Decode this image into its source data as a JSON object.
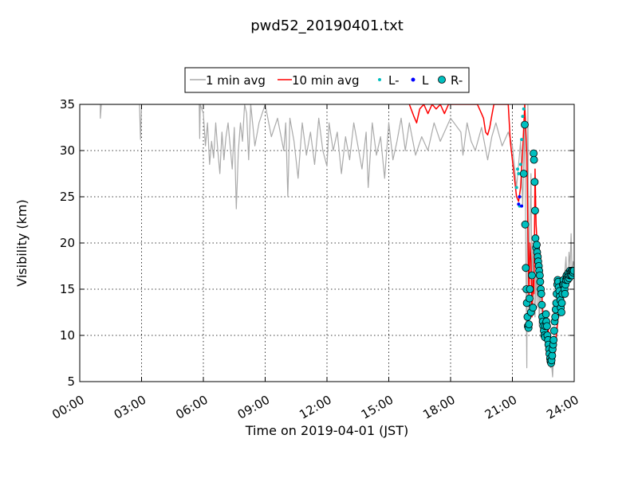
{
  "chart_data": {
    "type": "line",
    "title": "pwd52_20190401.txt",
    "xlabel": "Time on 2019-04-01 (JST)",
    "ylabel": "Visibility (km)",
    "xlim": [
      0,
      24
    ],
    "ylim": [
      5,
      35
    ],
    "x_ticks": [
      0,
      3,
      6,
      9,
      12,
      15,
      18,
      21,
      24
    ],
    "x_tick_labels": [
      "00:00",
      "03:00",
      "06:00",
      "09:00",
      "12:00",
      "15:00",
      "18:00",
      "21:00",
      "24:00"
    ],
    "y_ticks": [
      5,
      10,
      15,
      20,
      25,
      30,
      35
    ],
    "y_tick_labels": [
      "5",
      "10",
      "15",
      "20",
      "25",
      "30",
      "35"
    ],
    "grid": true,
    "legend_position": "top-center",
    "legend": [
      "1 min avg",
      "10 min avg",
      "L-",
      "L",
      "R-"
    ],
    "series": [
      {
        "name": "1 min avg",
        "color": "#aaaaaa",
        "x": [
          0.0,
          1.0,
          1.0,
          1.05,
          1.5,
          2.0,
          2.9,
          2.95,
          3.0,
          3.5,
          4.5,
          5.5,
          5.8,
          5.82,
          5.85,
          6.0,
          6.1,
          6.2,
          6.3,
          6.4,
          6.5,
          6.6,
          6.7,
          6.8,
          6.9,
          7.0,
          7.1,
          7.2,
          7.3,
          7.4,
          7.5,
          7.6,
          7.7,
          7.8,
          7.9,
          8.0,
          8.1,
          8.2,
          8.3,
          8.5,
          8.7,
          9.0,
          9.3,
          9.6,
          9.9,
          10.0,
          10.1,
          10.2,
          10.4,
          10.6,
          10.8,
          11.0,
          11.2,
          11.4,
          11.6,
          11.8,
          12.0,
          12.1,
          12.3,
          12.5,
          12.7,
          12.9,
          13.1,
          13.3,
          13.5,
          13.7,
          13.9,
          14.0,
          14.2,
          14.4,
          14.6,
          14.8,
          15.0,
          15.2,
          15.4,
          15.6,
          15.8,
          16.0,
          16.3,
          16.6,
          16.9,
          17.2,
          17.5,
          18.0,
          18.5,
          18.6,
          18.8,
          19.0,
          19.2,
          19.5,
          19.8,
          20.0,
          20.2,
          20.5,
          20.8,
          21.0,
          21.2,
          21.4,
          21.5,
          21.6,
          21.7,
          21.75,
          21.8,
          21.85,
          21.9,
          21.95,
          22.0,
          22.05,
          22.1,
          22.15,
          22.2,
          22.25,
          22.3,
          22.35,
          22.4,
          22.45,
          22.5,
          22.55,
          22.6,
          22.65,
          22.7,
          22.75,
          22.8,
          22.85,
          22.9,
          22.95,
          23.0,
          23.05,
          23.1,
          23.15,
          23.2,
          23.25,
          23.3,
          23.35,
          23.4,
          23.45,
          23.5,
          23.55,
          23.6,
          23.65,
          23.7,
          23.75,
          23.8,
          23.85,
          23.9,
          23.95,
          24.0
        ],
        "y": [
          35.0,
          35.0,
          33.5,
          35.0,
          35.0,
          35.0,
          35.0,
          31.2,
          35.0,
          35.0,
          35.0,
          35.0,
          35.0,
          31.3,
          35.0,
          34.0,
          30.5,
          33.0,
          28.5,
          31.0,
          29.2,
          33.0,
          30.0,
          27.5,
          32.0,
          29.0,
          31.5,
          33.0,
          30.5,
          28.0,
          32.5,
          23.7,
          30.0,
          33.0,
          31.0,
          35.0,
          34.0,
          29.0,
          35.0,
          30.5,
          33.0,
          35.0,
          31.5,
          33.5,
          30.0,
          33.0,
          25.0,
          33.5,
          31.0,
          27.0,
          33.0,
          29.5,
          32.0,
          28.5,
          33.5,
          30.0,
          28.3,
          33.0,
          30.0,
          32.0,
          27.5,
          31.5,
          29.0,
          33.0,
          30.5,
          28.0,
          32.0,
          26.0,
          33.0,
          29.5,
          31.5,
          27.0,
          33.0,
          29.0,
          31.0,
          33.5,
          30.0,
          33.0,
          29.5,
          31.5,
          30.0,
          33.0,
          31.0,
          33.5,
          32.0,
          29.5,
          33.0,
          31.0,
          30.0,
          32.5,
          29.0,
          31.5,
          33.0,
          30.5,
          32.0,
          30.5,
          26.0,
          31.0,
          24.0,
          33.0,
          6.5,
          35.0,
          11.0,
          22.0,
          27.5,
          15.0,
          20.0,
          14.0,
          12.0,
          18.0,
          13.0,
          19.5,
          11.0,
          15.0,
          13.0,
          11.5,
          12.0,
          9.5,
          10.5,
          11.8,
          12.5,
          11.0,
          8.0,
          6.5,
          7.0,
          5.5,
          8.0,
          7.5,
          8.5,
          9.5,
          11.5,
          13.0,
          12.0,
          13.5,
          15.0,
          16.5,
          14.0,
          17.0,
          18.5,
          15.5,
          16.0,
          19.0,
          17.5,
          21.0,
          16.5,
          18.0,
          17.5
        ]
      },
      {
        "name": "10 min avg",
        "color": "#ff0000",
        "x": [
          16.0,
          16.2,
          16.35,
          16.5,
          16.7,
          16.9,
          17.1,
          17.3,
          17.5,
          17.7,
          17.9,
          18.0,
          19.3,
          19.5,
          19.6,
          19.7,
          19.8,
          19.9,
          20.0,
          20.1,
          20.3,
          20.5,
          20.8,
          20.9,
          21.0,
          21.1,
          21.2,
          21.3,
          21.4,
          21.5,
          21.6,
          21.7,
          21.8,
          21.85,
          21.9,
          21.95,
          22.0,
          22.05,
          22.1,
          22.15,
          22.2,
          22.25,
          22.3,
          22.35,
          22.4,
          22.45,
          22.5,
          22.55,
          22.6,
          22.65,
          22.7,
          22.75,
          22.8,
          22.85,
          22.9,
          22.95,
          23.0,
          23.05,
          23.1,
          23.15,
          23.2,
          23.25,
          23.3,
          23.35,
          23.4,
          23.45,
          23.5,
          23.55,
          23.6,
          23.65,
          23.7,
          23.75,
          23.8,
          23.85,
          23.9,
          23.95,
          24.0
        ],
        "y": [
          35.0,
          33.8,
          33.0,
          34.5,
          35.0,
          34.0,
          35.0,
          34.5,
          35.0,
          34.0,
          35.0,
          35.0,
          35.0,
          34.0,
          33.5,
          32.0,
          31.7,
          32.5,
          33.8,
          35.0,
          35.0,
          35.0,
          35.0,
          31.0,
          29.0,
          27.0,
          25.0,
          24.5,
          26.0,
          30.0,
          35.0,
          29.5,
          14.0,
          20.0,
          18.0,
          12.0,
          16.0,
          14.5,
          28.0,
          22.0,
          20.0,
          19.0,
          18.5,
          17.0,
          16.0,
          13.5,
          11.5,
          10.5,
          11.0,
          12.0,
          11.5,
          10.5,
          9.0,
          8.5,
          7.5,
          7.2,
          7.5,
          8.5,
          9.5,
          10.5,
          11.5,
          12.5,
          13.5,
          14.5,
          15.5,
          16.0,
          16.3,
          16.0,
          16.5,
          16.8,
          16.5,
          17.0,
          16.8,
          17.0,
          16.8,
          17.0,
          17.0
        ]
      },
      {
        "name": "L-",
        "color": "#00bfbf",
        "marker": "small-dot",
        "x": [
          21.2,
          21.25,
          21.3,
          21.35,
          21.4,
          21.45,
          21.5,
          21.55
        ],
        "y": [
          26.0,
          28.0,
          27.5,
          24.0,
          28.5,
          31.2,
          33.7,
          34.5
        ]
      },
      {
        "name": "L",
        "color": "#0000ff",
        "marker": "small-dot",
        "x": [
          21.3,
          21.35,
          21.45
        ],
        "y": [
          24.2,
          25.0,
          24.0
        ]
      },
      {
        "name": "R-",
        "color": "#00bfbf",
        "marker": "circle",
        "x": [
          21.55,
          21.6,
          21.62,
          21.65,
          21.68,
          21.7,
          21.73,
          21.75,
          21.78,
          21.8,
          21.83,
          21.85,
          21.9,
          21.95,
          22.0,
          22.03,
          22.05,
          22.08,
          22.1,
          22.12,
          22.15,
          22.18,
          22.2,
          22.23,
          22.25,
          22.28,
          22.3,
          22.33,
          22.35,
          22.38,
          22.4,
          22.43,
          22.45,
          22.48,
          22.5,
          22.53,
          22.55,
          22.58,
          22.6,
          22.63,
          22.65,
          22.68,
          22.7,
          22.73,
          22.75,
          22.78,
          22.8,
          22.83,
          22.85,
          22.88,
          22.9,
          22.93,
          22.95,
          22.98,
          23.0,
          23.03,
          23.05,
          23.08,
          23.1,
          23.13,
          23.15,
          23.18,
          23.2,
          23.23,
          23.25,
          23.28,
          23.3,
          23.33,
          23.35,
          23.38,
          23.4,
          23.43,
          23.45,
          23.48,
          23.5,
          23.53,
          23.55,
          23.58,
          23.6,
          23.63,
          23.65,
          23.68,
          23.7,
          23.73,
          23.75,
          23.78,
          23.8,
          23.83,
          23.85,
          23.88,
          23.9,
          23.93,
          23.95,
          23.98
        ],
        "y": [
          27.5,
          32.8,
          22.0,
          17.3,
          15.0,
          13.5,
          12.0,
          11.0,
          10.8,
          11.2,
          14.0,
          15.0,
          12.5,
          16.5,
          13.0,
          29.7,
          29.0,
          26.6,
          23.5,
          20.5,
          19.5,
          19.8,
          19.0,
          18.5,
          18.0,
          17.5,
          17.0,
          16.5,
          15.8,
          15.0,
          14.5,
          13.3,
          12.0,
          11.5,
          11.0,
          10.5,
          10.0,
          9.8,
          11.0,
          12.3,
          11.5,
          11.0,
          10.0,
          9.5,
          9.0,
          8.5,
          8.0,
          7.5,
          7.2,
          7.0,
          7.3,
          7.8,
          8.5,
          9.0,
          9.5,
          10.5,
          11.5,
          12.0,
          12.8,
          13.5,
          14.5,
          15.5,
          16.0,
          15.8,
          15.2,
          14.8,
          14.2,
          13.8,
          13.0,
          12.5,
          13.5,
          14.5,
          15.5,
          16.0,
          15.5,
          15.0,
          14.5,
          15.5,
          16.0,
          16.5,
          16.2,
          16.0,
          16.5,
          16.8,
          16.2,
          16.5,
          17.0,
          16.8,
          16.5,
          17.0,
          16.5,
          17.0,
          16.8,
          17.0
        ]
      }
    ]
  }
}
